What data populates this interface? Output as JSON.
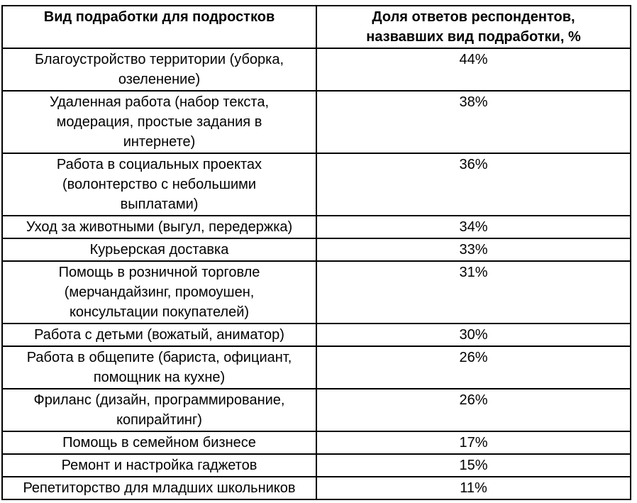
{
  "page": {
    "background": "#ffffff"
  },
  "colors": {
    "border": "#000000",
    "text": "#000000",
    "background": "#ffffff"
  },
  "table": {
    "headers": [
      "Вид подработки для подростков",
      "Доля ответов респондентов,\nназвавших вид подработки, %"
    ],
    "rows": [
      {
        "job_type": "Благоустройство территории (уборка,\nозеленение)",
        "share": "44%"
      },
      {
        "job_type": "Удаленная работа (набор текста,\nмодерация, простые задания в\nинтернете)",
        "share": "38%"
      },
      {
        "job_type": "Работа в социальных проектах\n(волонтерство с небольшими\nвыплатами)",
        "share": "36%"
      },
      {
        "job_type": "Уход за животными (выгул, передержка)",
        "share": "34%"
      },
      {
        "job_type": "Курьерская доставка",
        "share": "33%"
      },
      {
        "job_type": "Помощь в розничной торговле\n(мерчандайзинг, промоушен,\nконсультации покупателей)",
        "share": "31%"
      },
      {
        "job_type": "Работа с детьми (вожатый, аниматор)",
        "share": "30%"
      },
      {
        "job_type": "Работа в общепите (бариста, официант,\nпомощник на кухне)",
        "share": "26%"
      },
      {
        "job_type": "Фриланс (дизайн, программирование,\nкопирайтинг)",
        "share": "26%"
      },
      {
        "job_type": "Помощь в семейном бизнесе",
        "share": "17%"
      },
      {
        "job_type": "Ремонт и настройка гаджетов",
        "share": "15%"
      },
      {
        "job_type": "Репетиторство для младших школьников",
        "share": "11%"
      }
    ]
  },
  "chart_data": {
    "type": "table",
    "columns": [
      "Вид подработки для подростков",
      "Доля ответов респондентов, назвавших вид подработки, %"
    ],
    "categories": [
      "Благоустройство территории (уборка, озеленение)",
      "Удаленная работа (набор текста, модерация, простые задания в интернете)",
      "Работа в социальных проектах (волонтерство с небольшими выплатами)",
      "Уход за животными (выгул, передержка)",
      "Курьерская доставка",
      "Помощь в розничной торговле (мерчандайзинг, промоушен, консультации покупателей)",
      "Работа с детьми (вожатый, аниматор)",
      "Работа в общепите (бариста, официант, помощник на кухне)",
      "Фриланс (дизайн, программирование, копирайтинг)",
      "Помощь в семейном бизнесе",
      "Ремонт и настройка гаджетов",
      "Репетиторство для младших школьников"
    ],
    "values": [
      44,
      38,
      36,
      34,
      33,
      31,
      30,
      26,
      26,
      17,
      15,
      11
    ],
    "unit": "%"
  }
}
